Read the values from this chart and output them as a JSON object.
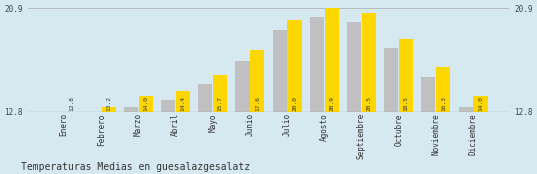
{
  "categories": [
    "Enero",
    "Febrero",
    "Marzo",
    "Abril",
    "Mayo",
    "Junio",
    "Julio",
    "Agosto",
    "Septiembre",
    "Octubre",
    "Noviembre",
    "Diciembre"
  ],
  "values": [
    12.8,
    13.2,
    14.0,
    14.4,
    15.7,
    17.6,
    20.0,
    20.9,
    20.5,
    18.5,
    16.3,
    14.0
  ],
  "gray_values": [
    12.1,
    12.5,
    13.2,
    13.7,
    15.0,
    16.8,
    19.2,
    20.2,
    19.8,
    17.8,
    15.5,
    13.2
  ],
  "bar_color_yellow": "#FFD700",
  "bar_color_gray": "#C0C0C0",
  "background_color": "#D6E8F0",
  "title": "Temperaturas Medias en guesalazgesalatz",
  "ymin": 12.8,
  "ymax": 20.9,
  "yticks": [
    12.8,
    20.9
  ],
  "title_fontsize": 7,
  "bar_label_fontsize": 4.5,
  "axis_label_fontsize": 5.5
}
